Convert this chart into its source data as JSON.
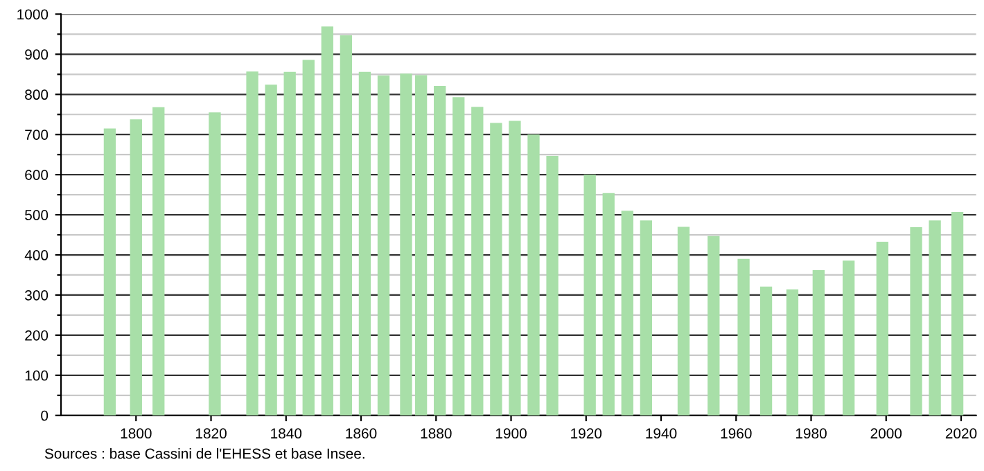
{
  "chart_data": {
    "type": "bar",
    "x": [
      1793,
      1800,
      1806,
      1821,
      1831,
      1836,
      1841,
      1846,
      1851,
      1856,
      1861,
      1866,
      1872,
      1876,
      1881,
      1886,
      1891,
      1896,
      1901,
      1906,
      1911,
      1921,
      1926,
      1931,
      1936,
      1946,
      1954,
      1962,
      1968,
      1975,
      1982,
      1990,
      1999,
      2008,
      2013,
      2019
    ],
    "values": [
      715,
      738,
      768,
      755,
      857,
      824,
      856,
      886,
      969,
      947,
      856,
      847,
      852,
      848,
      821,
      793,
      769,
      729,
      734,
      700,
      647,
      600,
      554,
      510,
      486,
      470,
      447,
      390,
      321,
      314,
      362,
      386,
      433,
      469,
      486,
      507
    ],
    "color": "#a8dfa8",
    "xlim": [
      1780,
      2024
    ],
    "xticks": [
      1800,
      1820,
      1840,
      1860,
      1880,
      1900,
      1920,
      1940,
      1960,
      1980,
      2000,
      2020
    ],
    "ylim": [
      0,
      1000
    ],
    "yticks": [
      0,
      {
        "value": 50,
        "label": null
      },
      100,
      {
        "value": 150,
        "label": null
      },
      200,
      {
        "value": 250,
        "label": null
      },
      300,
      {
        "value": 350,
        "label": null
      },
      400,
      {
        "value": 450,
        "label": null
      },
      500,
      {
        "value": 550,
        "label": null
      },
      600,
      {
        "value": 650,
        "label": null
      },
      700,
      {
        "value": 750,
        "label": null
      },
      800,
      {
        "value": 850,
        "label": null
      },
      900,
      {
        "value": 950,
        "label": null
      },
      1000
    ],
    "grid": "y",
    "annotations": [
      "Sources : base Cassini de l'EHESS et base Insee."
    ]
  }
}
